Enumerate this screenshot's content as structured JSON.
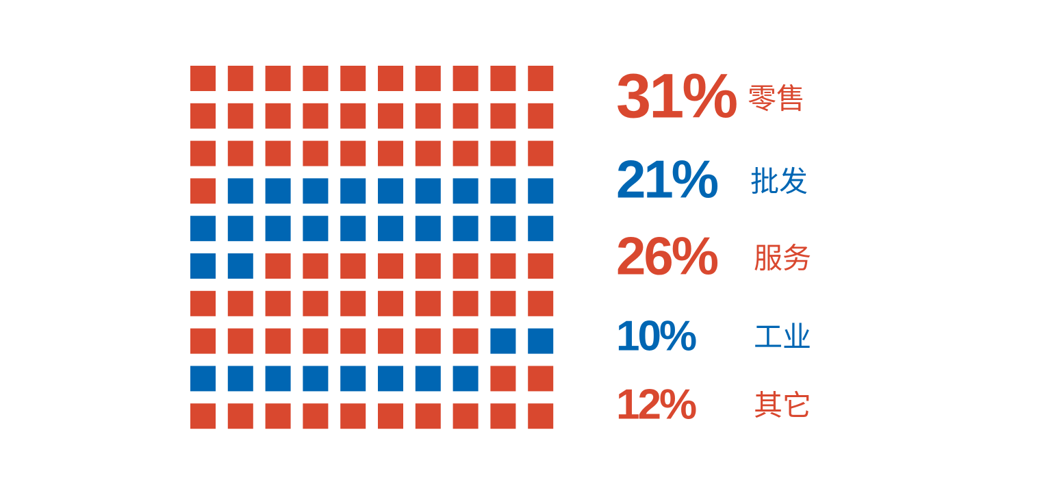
{
  "chart_data": {
    "type": "waffle",
    "categories": [
      "零售",
      "批发",
      "服务",
      "工业",
      "其它"
    ],
    "values": [
      31,
      21,
      26,
      10,
      12
    ],
    "value_labels": [
      "31%",
      "21%",
      "26%",
      "10%",
      "12%"
    ],
    "colors": [
      "#d9482f",
      "#0066b3",
      "#d9482f",
      "#0066b3",
      "#d9482f"
    ]
  }
}
